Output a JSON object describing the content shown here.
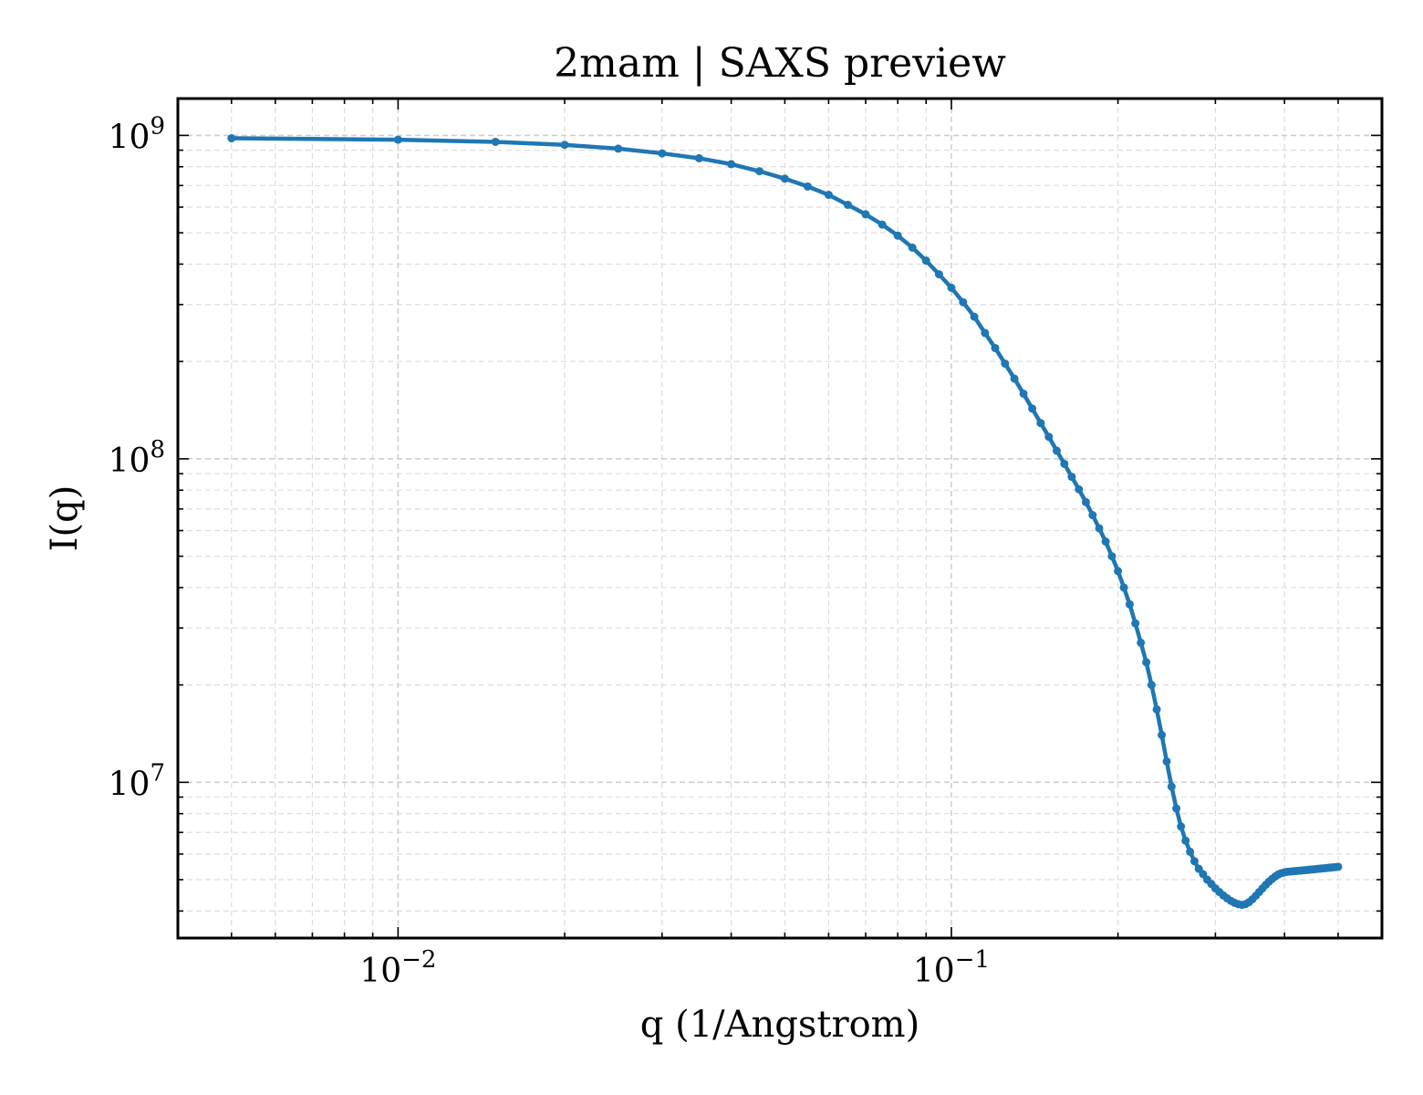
{
  "chart_data": {
    "type": "line",
    "title": "2mam | SAXS preview",
    "xlabel": "q (1/Angstrom)",
    "ylabel": "I(q)",
    "xscale": "log",
    "yscale": "log",
    "xlim": [
      0.004,
      0.6
    ],
    "ylim": [
      3300000,
      1300000000
    ],
    "grid": true,
    "legend": "none",
    "x_tick_labels": [
      {
        "value": 0.01,
        "base": "10",
        "exp": "−2"
      },
      {
        "value": 0.1,
        "base": "10",
        "exp": "−1"
      }
    ],
    "y_tick_labels": [
      {
        "value": 10000000,
        "base": "10",
        "exp": "7"
      },
      {
        "value": 100000000,
        "base": "10",
        "exp": "8"
      },
      {
        "value": 1000000000,
        "base": "10",
        "exp": "9"
      }
    ],
    "series": [
      {
        "color": "#1f77b4",
        "x": [
          0.005,
          0.01,
          0.015,
          0.02,
          0.025,
          0.03,
          0.035,
          0.04,
          0.045,
          0.05,
          0.055,
          0.06,
          0.065,
          0.07,
          0.075,
          0.08,
          0.085,
          0.09,
          0.095,
          0.1,
          0.105,
          0.11,
          0.115,
          0.12,
          0.125,
          0.13,
          0.135,
          0.14,
          0.145,
          0.15,
          0.155,
          0.16,
          0.165,
          0.17,
          0.175,
          0.18,
          0.185,
          0.19,
          0.195,
          0.2,
          0.205,
          0.21,
          0.215,
          0.22,
          0.225,
          0.23,
          0.235,
          0.24,
          0.245,
          0.25,
          0.255,
          0.26,
          0.265,
          0.27,
          0.275,
          0.28,
          0.285,
          0.29,
          0.295,
          0.3,
          0.305,
          0.31,
          0.315,
          0.32,
          0.325,
          0.33,
          0.335,
          0.34,
          0.345,
          0.35,
          0.355,
          0.36,
          0.365,
          0.37,
          0.375,
          0.38,
          0.385,
          0.39,
          0.395,
          0.4,
          0.405,
          0.41,
          0.415,
          0.42,
          0.425,
          0.43,
          0.435,
          0.44,
          0.445,
          0.45,
          0.455,
          0.46,
          0.465,
          0.47,
          0.475,
          0.48,
          0.485,
          0.49,
          0.495,
          0.5
        ],
        "y": [
          980000000,
          970000000,
          955000000,
          935000000,
          910000000,
          880000000,
          850000000,
          815000000,
          775000000,
          735000000,
          695000000,
          655000000,
          610000000,
          570000000,
          530000000,
          490000000,
          450000000,
          410000000,
          372000000,
          338000000,
          305000000,
          275000000,
          245000000,
          220000000,
          197000000,
          177000000,
          159000000,
          143000000,
          129000000,
          117000000,
          106000000,
          96500000,
          88000000,
          80500000,
          73500000,
          67000000,
          61000000,
          55500000,
          50000000,
          45000000,
          40000000,
          35500000,
          31000000,
          27000000,
          23500000,
          20000000,
          16800000,
          14000000,
          11600000,
          9700000,
          8300000,
          7300000,
          6600000,
          6100000,
          5700000,
          5400000,
          5200000,
          5000000,
          4850000,
          4700000,
          4580000,
          4470000,
          4380000,
          4300000,
          4240000,
          4200000,
          4180000,
          4200000,
          4260000,
          4350000,
          4460000,
          4580000,
          4700000,
          4820000,
          4930000,
          5030000,
          5120000,
          5190000,
          5240000,
          5270000,
          5290000,
          5300000,
          5310000,
          5320000,
          5330000,
          5340000,
          5350000,
          5360000,
          5370000,
          5380000,
          5390000,
          5400000,
          5410000,
          5420000,
          5430000,
          5440000,
          5450000,
          5460000,
          5470000,
          5480000
        ]
      }
    ]
  }
}
